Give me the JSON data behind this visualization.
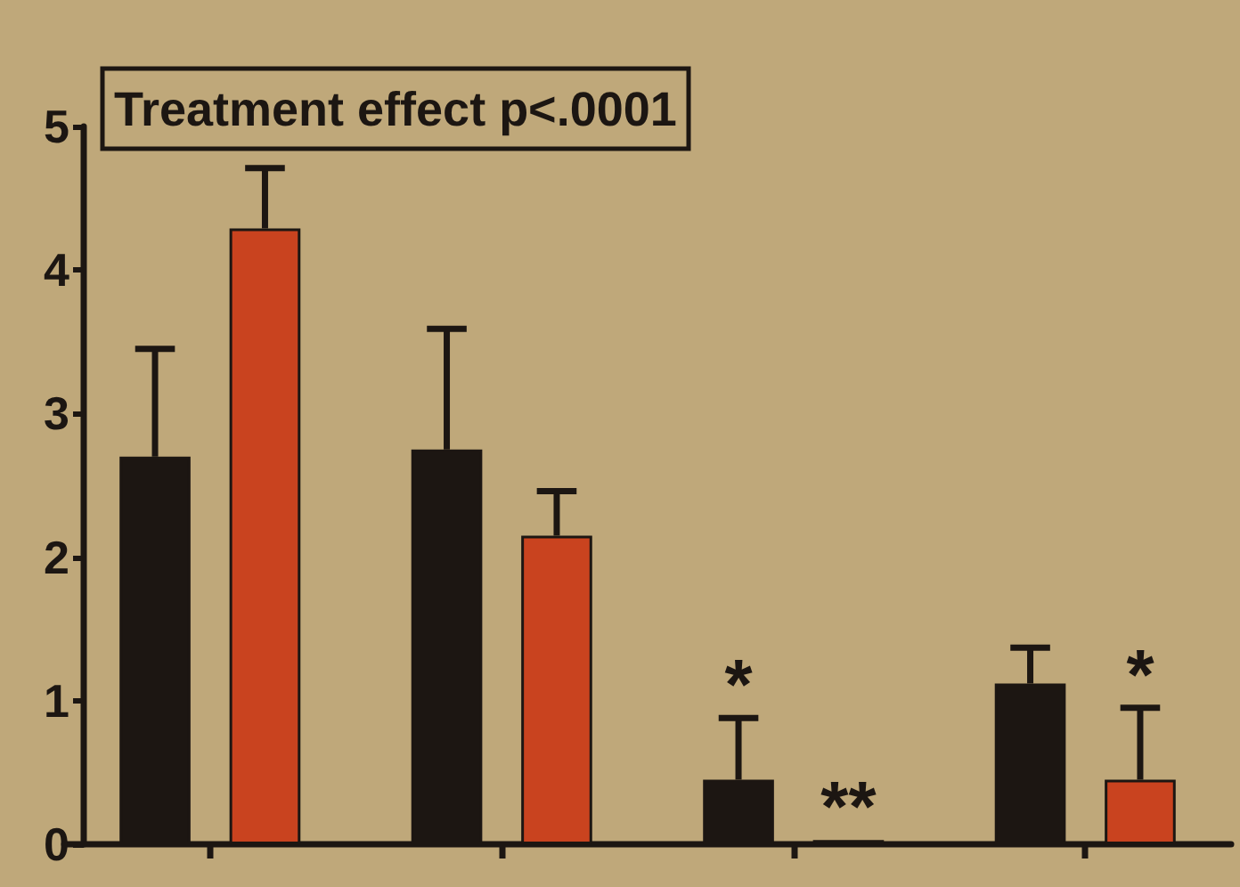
{
  "chart_data": {
    "type": "bar",
    "categories": [
      null,
      null,
      null,
      null
    ],
    "series": [
      {
        "color": "#1c1612",
        "values": [
          2.7,
          2.75,
          0.45,
          1.12
        ],
        "errors": [
          [
            2.7,
            3.45
          ],
          [
            2.75,
            3.59
          ],
          [
            0.45,
            0.88
          ],
          [
            1.12,
            1.37
          ]
        ],
        "value_labels": [
          null,
          null,
          "*",
          null
        ]
      },
      {
        "color": "#c9431f",
        "values": [
          4.29,
          2.15,
          0.03,
          0.45
        ],
        "errors": [
          [
            4.29,
            4.71
          ],
          [
            2.15,
            2.46
          ],
          null,
          [
            0.45,
            0.95
          ]
        ],
        "value_labels": [
          null,
          null,
          "**",
          "*"
        ]
      }
    ],
    "ylim": [
      0,
      5
    ],
    "yticks": [
      0,
      1,
      2,
      3,
      4,
      5
    ],
    "annotations": [
      "Treatment effect p<.0001"
    ]
  }
}
